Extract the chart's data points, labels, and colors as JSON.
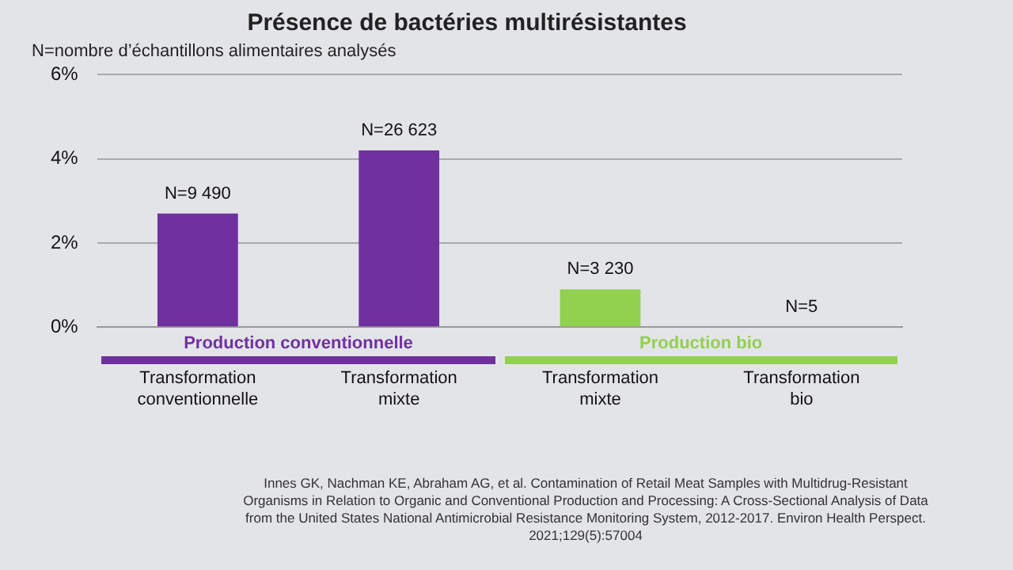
{
  "chart_data": {
    "type": "bar",
    "title": "Présence de bactéries multirésistantes",
    "subtitle": "N=nombre d’échantillons alimentaires analysés",
    "categories": [
      "Transformation conventionnelle",
      "Transformation mixte",
      "Transformation mixte",
      "Transformation bio"
    ],
    "values": [
      2.7,
      4.2,
      0.9,
      0
    ],
    "colors": [
      "#7030a0",
      "#7030a0",
      "#92d050",
      "#92d050"
    ],
    "ylim": [
      0,
      6
    ],
    "yticks": [
      {
        "value": 0,
        "label": "0%"
      },
      {
        "value": 2,
        "label": "2%"
      },
      {
        "value": 4,
        "label": "4%"
      },
      {
        "value": 6,
        "label": "6%"
      }
    ],
    "grid": "y",
    "legend": false,
    "annotations": [
      "N=9 490",
      "N=26 623",
      "N=3 230",
      "N=5",
      "Production conventionnelle",
      "Production bio",
      "Innes GK, Nachman KE, Abraham AG, et al. Contamination of Retail Meat Samples with Multidrug-Resistant Organisms in Relation to Organic and Conventional Production and Processing: A Cross-Sectional Analysis of Data from the United States National Antimicrobial Resistance Monitoring System, 2012-2017. Environ Health Perspect. 2021;129(5):57004"
    ]
  }
}
